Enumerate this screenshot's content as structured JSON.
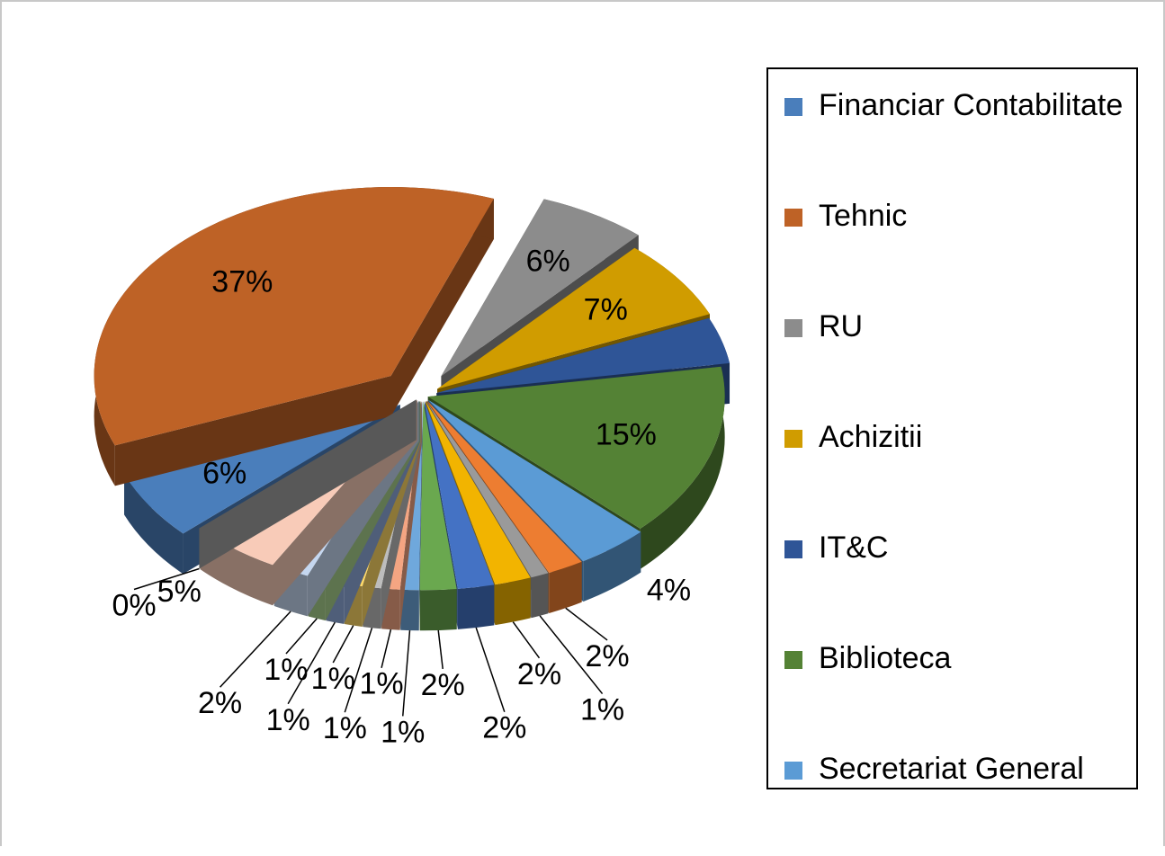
{
  "chart_data": {
    "type": "pie",
    "categories": [
      "Financiar Contabilitate",
      "Tehnic",
      "RU",
      "Achizitii",
      "IT&C",
      "Biblioteca",
      "Secretariat General",
      null,
      null,
      null,
      null,
      null,
      null,
      null,
      null,
      null,
      null,
      null,
      null,
      null,
      null
    ],
    "values": [
      6,
      37,
      6,
      7,
      4,
      15,
      4,
      2,
      1,
      2,
      2,
      2,
      1,
      1,
      1,
      1,
      1,
      1,
      2,
      5,
      0
    ],
    "value_labels": [
      "6%",
      "37%",
      "6%",
      "7%",
      "4%",
      "15%",
      "4%",
      "2%",
      "1%",
      "2%",
      "2%",
      "2%",
      "1%",
      "1%",
      "1%",
      "1%",
      "1%",
      "1%",
      "2%",
      "5%",
      "0%"
    ],
    "colors": [
      "#4a7ebb",
      "#be6226",
      "#8c8c8c",
      "#d09c00",
      "#2f5597",
      "#548235",
      "#5b9bd5",
      "#ed7d31",
      "#9a9a9a",
      "#f2b400",
      "#4472c4",
      "#6aa84f",
      "#6fa8dc",
      "#f4a582",
      "#bdbdbd",
      "#ffd966",
      "#8faadc",
      "#a9d18e",
      "#c5d7f0",
      "#f8cbb8",
      "#a0a0a0"
    ],
    "legend": "right"
  }
}
